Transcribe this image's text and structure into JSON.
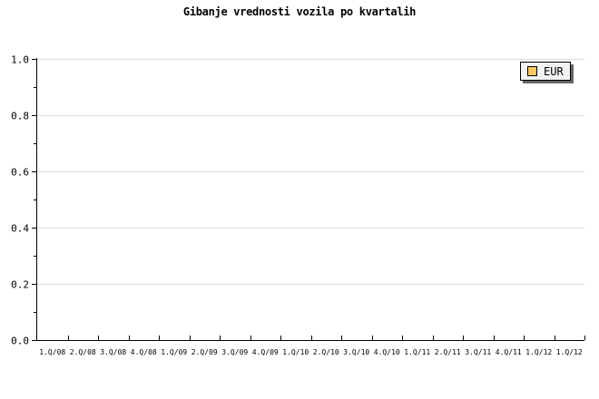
{
  "title": "Gibanje vrednosti vozila po kvartalih",
  "legend": {
    "label": "EUR",
    "swatch_color": "#FDC864",
    "background": "#F2F2F2",
    "border_color": "#000000",
    "shadow_color": "#666666"
  },
  "colors": {
    "background": "#FFFFFF",
    "axis": "#000000",
    "gridline": "#DDDDDD",
    "text": "#000000"
  },
  "chart_data": {
    "type": "line",
    "title": "Gibanje vrednosti vozila po kvartalih",
    "categories": [
      "1.Q/08",
      "2.Q/08",
      "3.Q/08",
      "4.Q/08",
      "1.Q/09",
      "2.Q/09",
      "3.Q/09",
      "4.Q/09",
      "1.Q/10",
      "2.Q/10",
      "3.Q/10",
      "4.Q/10",
      "1.Q/11",
      "2.Q/11",
      "3.Q/11",
      "4.Q/11",
      "1.Q/12",
      "1.Q/12"
    ],
    "series": [
      {
        "name": "EUR",
        "color": "#FDC864",
        "values": []
      }
    ],
    "xlabel": "",
    "ylabel": "",
    "ylim": [
      0.0,
      1.0
    ],
    "y_tick_labels": [
      "0.0",
      "0.2",
      "0.4",
      "0.6",
      "0.8",
      "1.0"
    ],
    "y_major_tick_step": 0.2,
    "y_minor_tick_step": 0.1,
    "grid": "horizontal-major-only",
    "legend_position": "top-right",
    "plot_area_empty": true
  }
}
